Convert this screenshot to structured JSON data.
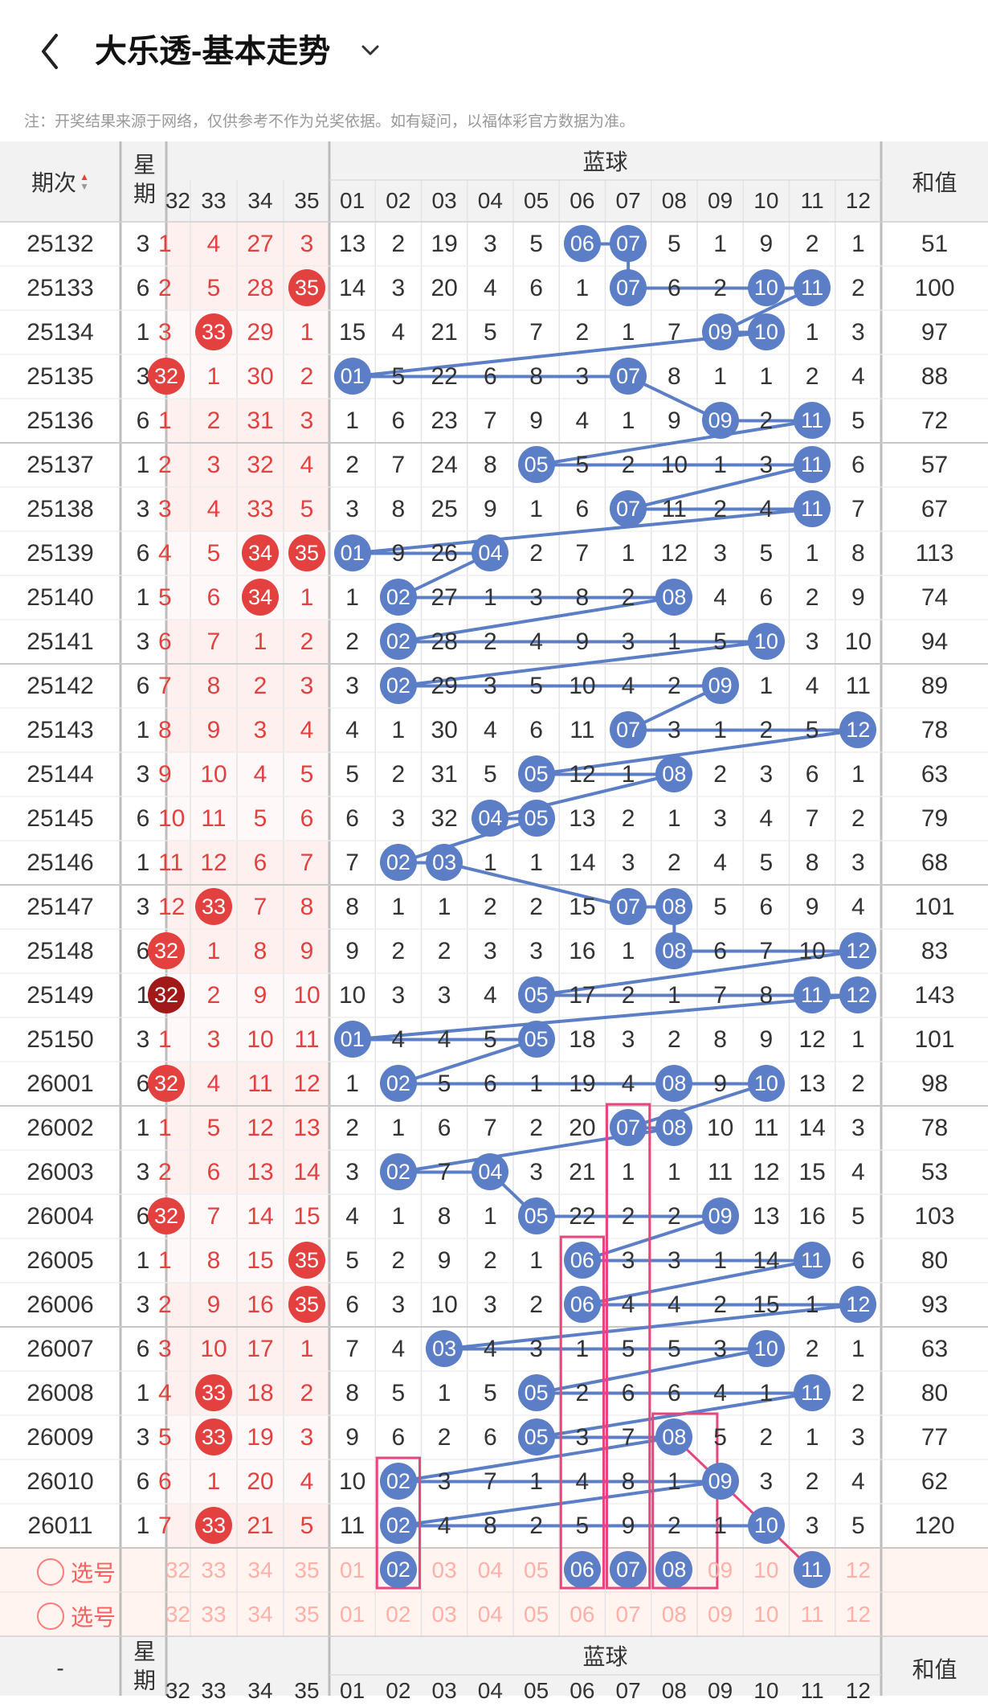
{
  "header": {
    "title": "大乐透-基本走势"
  },
  "notice": "注：开奖结果来源于网络，仅供参考不作为兑奖依据。如有疑问，以福体彩官方数据为准。",
  "table": {
    "col_period": "期次",
    "col_week": "星期",
    "group_blue": "蓝球",
    "col_sum": "和值",
    "red_headers": [
      "32",
      "33",
      "34",
      "35"
    ],
    "blue_headers": [
      "01",
      "02",
      "03",
      "04",
      "05",
      "06",
      "07",
      "08",
      "09",
      "10",
      "11",
      "12"
    ],
    "bottom_period": "-",
    "bottom_red_headers": [
      "32",
      "33",
      "34",
      "35"
    ],
    "bottom_blue_headers": [
      "01",
      "02",
      "03",
      "04",
      "05",
      "06",
      "07",
      "08",
      "09",
      "10",
      "11",
      "12"
    ],
    "rows": [
      {
        "p": "25132",
        "w": "3",
        "red": [
          "1",
          "4",
          "27",
          "3"
        ],
        "blue": [
          "13",
          "2",
          "19",
          "3",
          "5",
          "06",
          "07",
          "5",
          "1",
          "9",
          "2",
          "1"
        ],
        "s": "51"
      },
      {
        "p": "25133",
        "w": "6",
        "red": [
          "2",
          "5",
          "28",
          "35"
        ],
        "blue": [
          "14",
          "3",
          "20",
          "4",
          "6",
          "1",
          "07",
          "6",
          "2",
          "10",
          "11",
          "2"
        ],
        "s": "100"
      },
      {
        "p": "25134",
        "w": "1",
        "red": [
          "3",
          "33",
          "29",
          "1"
        ],
        "blue": [
          "15",
          "4",
          "21",
          "5",
          "7",
          "2",
          "1",
          "7",
          "09",
          "10",
          "1",
          "3"
        ],
        "s": "97"
      },
      {
        "p": "25135",
        "w": "3",
        "red": [
          "32",
          "1",
          "30",
          "2"
        ],
        "blue": [
          "01",
          "5",
          "22",
          "6",
          "8",
          "3",
          "07",
          "8",
          "1",
          "1",
          "2",
          "4"
        ],
        "s": "88"
      },
      {
        "p": "25136",
        "w": "6",
        "red": [
          "1",
          "2",
          "31",
          "3"
        ],
        "blue": [
          "1",
          "6",
          "23",
          "7",
          "9",
          "4",
          "1",
          "9",
          "09",
          "2",
          "11",
          "5"
        ],
        "s": "72"
      },
      {
        "p": "25137",
        "w": "1",
        "red": [
          "2",
          "3",
          "32",
          "4"
        ],
        "blue": [
          "2",
          "7",
          "24",
          "8",
          "05",
          "5",
          "2",
          "10",
          "1",
          "3",
          "11",
          "6"
        ],
        "s": "57"
      },
      {
        "p": "25138",
        "w": "3",
        "red": [
          "3",
          "4",
          "33",
          "5"
        ],
        "blue": [
          "3",
          "8",
          "25",
          "9",
          "1",
          "6",
          "07",
          "11",
          "2",
          "4",
          "11",
          "7"
        ],
        "s": "67"
      },
      {
        "p": "25139",
        "w": "6",
        "red": [
          "4",
          "5",
          "34",
          "35"
        ],
        "blue": [
          "01",
          "9",
          "26",
          "04",
          "2",
          "7",
          "1",
          "12",
          "3",
          "5",
          "1",
          "8"
        ],
        "s": "113"
      },
      {
        "p": "25140",
        "w": "1",
        "red": [
          "5",
          "6",
          "34",
          "1"
        ],
        "blue": [
          "1",
          "02",
          "27",
          "1",
          "3",
          "8",
          "2",
          "08",
          "4",
          "6",
          "2",
          "9"
        ],
        "s": "74"
      },
      {
        "p": "25141",
        "w": "3",
        "red": [
          "6",
          "7",
          "1",
          "2"
        ],
        "blue": [
          "2",
          "02",
          "28",
          "2",
          "4",
          "9",
          "3",
          "1",
          "5",
          "10",
          "3",
          "10"
        ],
        "s": "94"
      },
      {
        "p": "25142",
        "w": "6",
        "red": [
          "7",
          "8",
          "2",
          "3"
        ],
        "blue": [
          "3",
          "02",
          "29",
          "3",
          "5",
          "10",
          "4",
          "2",
          "09",
          "1",
          "4",
          "11"
        ],
        "s": "89"
      },
      {
        "p": "25143",
        "w": "1",
        "red": [
          "8",
          "9",
          "3",
          "4"
        ],
        "blue": [
          "4",
          "1",
          "30",
          "4",
          "6",
          "11",
          "07",
          "3",
          "1",
          "2",
          "5",
          "12"
        ],
        "s": "78"
      },
      {
        "p": "25144",
        "w": "3",
        "red": [
          "9",
          "10",
          "4",
          "5"
        ],
        "blue": [
          "5",
          "2",
          "31",
          "5",
          "05",
          "12",
          "1",
          "08",
          "2",
          "3",
          "6",
          "1"
        ],
        "s": "63"
      },
      {
        "p": "25145",
        "w": "6",
        "red": [
          "10",
          "11",
          "5",
          "6"
        ],
        "blue": [
          "6",
          "3",
          "32",
          "04",
          "05",
          "13",
          "2",
          "1",
          "3",
          "4",
          "7",
          "2"
        ],
        "s": "79"
      },
      {
        "p": "25146",
        "w": "1",
        "red": [
          "11",
          "12",
          "6",
          "7"
        ],
        "blue": [
          "7",
          "02",
          "03",
          "1",
          "1",
          "14",
          "3",
          "2",
          "4",
          "5",
          "8",
          "3"
        ],
        "s": "68"
      },
      {
        "p": "25147",
        "w": "3",
        "red": [
          "12",
          "33",
          "7",
          "8"
        ],
        "blue": [
          "8",
          "1",
          "1",
          "2",
          "2",
          "15",
          "07",
          "08",
          "5",
          "6",
          "9",
          "4"
        ],
        "s": "101"
      },
      {
        "p": "25148",
        "w": "6",
        "red": [
          "32",
          "1",
          "8",
          "9"
        ],
        "blue": [
          "9",
          "2",
          "2",
          "3",
          "3",
          "16",
          "1",
          "08",
          "6",
          "7",
          "10",
          "12"
        ],
        "s": "83"
      },
      {
        "p": "25149",
        "w": "1",
        "red": [
          "32",
          "2",
          "9",
          "10"
        ],
        "blue": [
          "10",
          "3",
          "3",
          "4",
          "05",
          "17",
          "2",
          "1",
          "7",
          "8",
          "11",
          "12"
        ],
        "s": "143"
      },
      {
        "p": "25150",
        "w": "3",
        "red": [
          "1",
          "3",
          "10",
          "11"
        ],
        "blue": [
          "01",
          "4",
          "4",
          "5",
          "05",
          "18",
          "3",
          "2",
          "8",
          "9",
          "12",
          "1"
        ],
        "s": "101"
      },
      {
        "p": "26001",
        "w": "6",
        "red": [
          "32",
          "4",
          "11",
          "12"
        ],
        "blue": [
          "1",
          "02",
          "5",
          "6",
          "1",
          "19",
          "4",
          "08",
          "9",
          "10",
          "13",
          "2"
        ],
        "s": "98"
      },
      {
        "p": "26002",
        "w": "1",
        "red": [
          "1",
          "5",
          "12",
          "13"
        ],
        "blue": [
          "2",
          "1",
          "6",
          "7",
          "2",
          "20",
          "07",
          "08",
          "10",
          "11",
          "14",
          "3"
        ],
        "s": "78"
      },
      {
        "p": "26003",
        "w": "3",
        "red": [
          "2",
          "6",
          "13",
          "14"
        ],
        "blue": [
          "3",
          "02",
          "7",
          "04",
          "3",
          "21",
          "1",
          "1",
          "11",
          "12",
          "15",
          "4"
        ],
        "s": "53"
      },
      {
        "p": "26004",
        "w": "6",
        "red": [
          "32",
          "7",
          "14",
          "15"
        ],
        "blue": [
          "4",
          "1",
          "8",
          "1",
          "05",
          "22",
          "2",
          "2",
          "09",
          "13",
          "16",
          "5"
        ],
        "s": "103"
      },
      {
        "p": "26005",
        "w": "1",
        "red": [
          "1",
          "8",
          "15",
          "35"
        ],
        "blue": [
          "5",
          "2",
          "9",
          "2",
          "1",
          "06",
          "3",
          "3",
          "1",
          "14",
          "11",
          "6"
        ],
        "s": "80"
      },
      {
        "p": "26006",
        "w": "3",
        "red": [
          "2",
          "9",
          "16",
          "35"
        ],
        "blue": [
          "6",
          "3",
          "10",
          "3",
          "2",
          "06",
          "4",
          "4",
          "2",
          "15",
          "1",
          "12"
        ],
        "s": "93"
      },
      {
        "p": "26007",
        "w": "6",
        "red": [
          "3",
          "10",
          "17",
          "1"
        ],
        "blue": [
          "7",
          "4",
          "03",
          "4",
          "3",
          "1",
          "5",
          "5",
          "3",
          "10",
          "2",
          "1"
        ],
        "s": "63"
      },
      {
        "p": "26008",
        "w": "1",
        "red": [
          "4",
          "33",
          "18",
          "2"
        ],
        "blue": [
          "8",
          "5",
          "1",
          "5",
          "05",
          "2",
          "6",
          "6",
          "4",
          "1",
          "11",
          "2"
        ],
        "s": "80"
      },
      {
        "p": "26009",
        "w": "3",
        "red": [
          "5",
          "33",
          "19",
          "3"
        ],
        "blue": [
          "9",
          "6",
          "2",
          "6",
          "05",
          "3",
          "7",
          "08",
          "5",
          "2",
          "1",
          "3"
        ],
        "s": "77"
      },
      {
        "p": "26010",
        "w": "6",
        "red": [
          "6",
          "1",
          "20",
          "4"
        ],
        "blue": [
          "10",
          "02",
          "3",
          "7",
          "1",
          "4",
          "8",
          "1",
          "09",
          "3",
          "2",
          "4"
        ],
        "s": "62"
      },
      {
        "p": "26011",
        "w": "1",
        "red": [
          "7",
          "33",
          "21",
          "5"
        ],
        "blue": [
          "11",
          "02",
          "4",
          "8",
          "2",
          "5",
          "9",
          "2",
          "1",
          "10",
          "3",
          "5"
        ],
        "s": "120"
      }
    ],
    "predict_row": {
      "blue": [
        "01",
        "02",
        "03",
        "04",
        "05",
        "06",
        "07",
        "08",
        "09",
        "10",
        "11",
        "12"
      ],
      "balls": [
        "02",
        "06",
        "07",
        "08",
        "11"
      ]
    },
    "select_label": "选号"
  },
  "colors": {
    "blue_ball": "#5b7ec6",
    "red_ball": "#e2413f",
    "dark_red_ball": "#a11a1a",
    "line": "#5b7ec6",
    "pink": "#e8457f",
    "red_bg": "#fff0f0",
    "foot_bg": "#fff4ef"
  }
}
